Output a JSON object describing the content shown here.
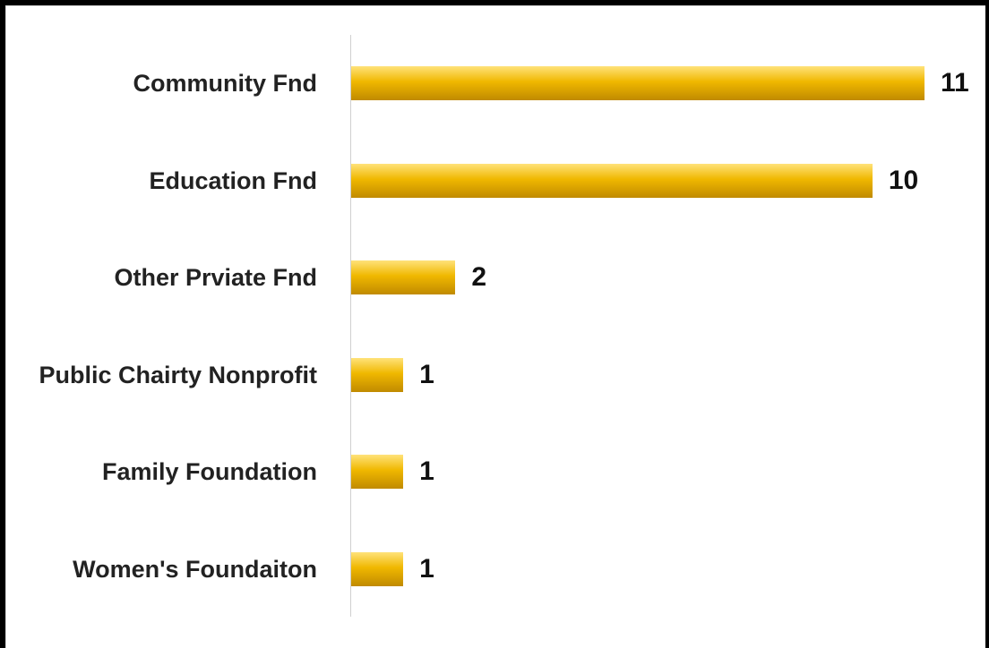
{
  "chart_data": {
    "type": "bar",
    "orientation": "horizontal",
    "categories": [
      "Community Fnd",
      "Education Fnd",
      "Other Prviate Fnd",
      "Public Chairty Nonprofit",
      "Family Foundation",
      "Women's Foundaiton"
    ],
    "values": [
      11,
      10,
      2,
      1,
      1,
      1
    ],
    "color": "#f0b800",
    "xlim": [
      0,
      11
    ]
  }
}
